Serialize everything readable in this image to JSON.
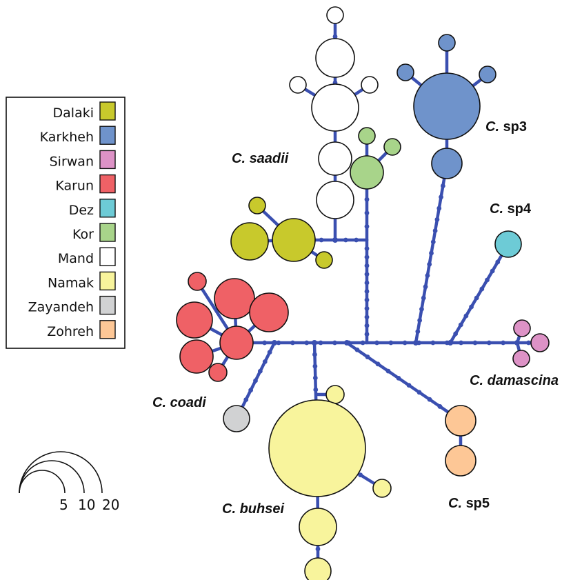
{
  "legend": {
    "items": [
      {
        "label": "Dalaki",
        "color": "#c8c92c"
      },
      {
        "label": "Karkheh",
        "color": "#6f93cb"
      },
      {
        "label": "Sirwan",
        "color": "#dd92c6"
      },
      {
        "label": "Karun",
        "color": "#ef6166"
      },
      {
        "label": "Dez",
        "color": "#6dcbd6"
      },
      {
        "label": "Kor",
        "color": "#a8d48a"
      },
      {
        "label": "Mand",
        "color": "#ffffff"
      },
      {
        "label": "Namak",
        "color": "#f8f49c"
      },
      {
        "label": "Zayandeh",
        "color": "#d1d2d3"
      },
      {
        "label": "Zohreh",
        "color": "#fdc796"
      }
    ]
  },
  "clades": [
    {
      "id": "saadii",
      "genus": "C.",
      "species": "saadii",
      "italic": true
    },
    {
      "id": "sp3",
      "genus": "C.",
      "species": "sp3",
      "italic": false
    },
    {
      "id": "sp4",
      "genus": "C.",
      "species": "sp4",
      "italic": false
    },
    {
      "id": "coadi",
      "genus": "C.",
      "species": "coadi",
      "italic": true
    },
    {
      "id": "damascina",
      "genus": "C.",
      "species": "damascina",
      "italic": true
    },
    {
      "id": "buhsei",
      "genus": "C.",
      "species": "buhsei",
      "italic": true
    },
    {
      "id": "sp5",
      "genus": "C.",
      "species": "sp5",
      "italic": false
    }
  ],
  "scale": {
    "labels": [
      "5",
      "10",
      "20"
    ]
  }
}
